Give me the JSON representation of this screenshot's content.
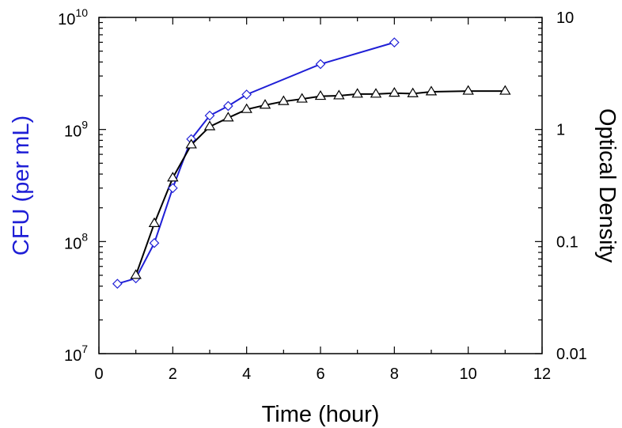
{
  "chart_data": {
    "type": "line",
    "xlabel": "Time (hour)",
    "ylabel_left": "CFU (per mL)",
    "ylabel_right": "Optical Density",
    "xlim": [
      0,
      12
    ],
    "x_ticks": [
      0,
      2,
      4,
      6,
      8,
      10,
      12
    ],
    "x_tick_labels": [
      "0",
      "2",
      "4",
      "6",
      "8",
      "10",
      "12"
    ],
    "ylim_left": [
      10000000,
      10000000000
    ],
    "ylim_left_scale": "log",
    "y_left_ticks": [
      {
        "value": 10000000,
        "base": "10",
        "exp": "7"
      },
      {
        "value": 100000000,
        "base": "10",
        "exp": "8"
      },
      {
        "value": 1000000000,
        "base": "10",
        "exp": "9"
      },
      {
        "value": 10000000000,
        "base": "10",
        "exp": "10"
      }
    ],
    "ylim_right": [
      0.01,
      10
    ],
    "ylim_right_scale": "log",
    "y_right_ticks": [
      {
        "value": 0.01,
        "label": "0.01"
      },
      {
        "value": 0.1,
        "label": "0.1"
      },
      {
        "value": 1,
        "label": "1"
      },
      {
        "value": 10,
        "label": "10"
      }
    ],
    "grid": false,
    "series": [
      {
        "axis": "left",
        "marker": "diamond",
        "color": "#1f1fd6",
        "x": [
          0.5,
          1,
          1.5,
          2,
          2.5,
          3,
          3.5,
          4,
          6,
          8
        ],
        "values": [
          42000000,
          47000000,
          97000000,
          300000000,
          820000000,
          1330000000,
          1620000000,
          2050000000,
          3830000000,
          5980000000
        ]
      },
      {
        "axis": "right",
        "marker": "triangle",
        "color": "#000000",
        "x": [
          1,
          1.5,
          2,
          2.5,
          3,
          3.5,
          4,
          4.5,
          5,
          5.5,
          6,
          6.5,
          7,
          7.5,
          8,
          8.5,
          9,
          10,
          11
        ],
        "values": [
          0.05,
          0.145,
          0.37,
          0.73,
          1.06,
          1.27,
          1.51,
          1.65,
          1.78,
          1.87,
          1.98,
          2.0,
          2.07,
          2.07,
          2.11,
          2.09,
          2.17,
          2.2,
          2.2
        ]
      }
    ]
  }
}
